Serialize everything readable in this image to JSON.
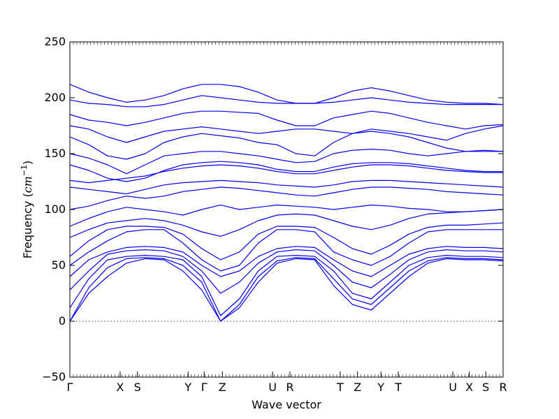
{
  "chart_data": {
    "type": "line",
    "title": "",
    "xlabel": "Wave vector",
    "ylabel_prefix": "Frequency (",
    "ylabel_unit": "cm",
    "ylabel_exp": "−1",
    "ylabel_suffix": ")",
    "ylim": [
      -50,
      250
    ],
    "yticks": [
      -50,
      0,
      50,
      100,
      150,
      200,
      250
    ],
    "xlim": [
      0,
      1
    ],
    "grid": false,
    "zero_line": true,
    "series_color": "#0000ee",
    "high_symmetry_points": [
      {
        "label": "Γ",
        "x": 0.0
      },
      {
        "label": "X",
        "x": 0.116
      },
      {
        "label": "S",
        "x": 0.156
      },
      {
        "label": "Y",
        "x": 0.273
      },
      {
        "label": "Γ",
        "x": 0.31
      },
      {
        "label": "Z",
        "x": 0.352
      },
      {
        "label": "U",
        "x": 0.468
      },
      {
        "label": "R",
        "x": 0.508
      },
      {
        "label": "T",
        "x": 0.624
      },
      {
        "label": "Z",
        "x": 0.664
      },
      {
        "label": "Y",
        "x": 0.718
      },
      {
        "label": "T",
        "x": 0.758
      },
      {
        "label": "U",
        "x": 0.884
      },
      {
        "label": "X",
        "x": 0.922
      },
      {
        "label": "S",
        "x": 0.96
      },
      {
        "label": "R",
        "x": 1.0
      }
    ],
    "series": [
      {
        "values": [
          0,
          25,
          40,
          52,
          56,
          55,
          45,
          28,
          0,
          12,
          35,
          52,
          56,
          55,
          32,
          15,
          10,
          25,
          40,
          52,
          56,
          55,
          55,
          54
        ]
      },
      {
        "values": [
          0,
          30,
          48,
          56,
          57,
          56,
          50,
          35,
          0,
          15,
          40,
          54,
          57,
          56,
          38,
          20,
          15,
          30,
          45,
          54,
          57,
          56,
          56,
          55
        ]
      },
      {
        "values": [
          12,
          38,
          55,
          58,
          59,
          58,
          55,
          40,
          5,
          20,
          45,
          58,
          59,
          58,
          45,
          25,
          20,
          35,
          50,
          57,
          59,
          58,
          58,
          57
        ]
      },
      {
        "values": [
          28,
          45,
          60,
          63,
          64,
          63,
          58,
          45,
          25,
          35,
          52,
          62,
          64,
          63,
          50,
          35,
          30,
          42,
          55,
          62,
          64,
          63,
          63,
          62
        ]
      },
      {
        "values": [
          40,
          55,
          62,
          66,
          67,
          66,
          62,
          50,
          40,
          45,
          58,
          65,
          67,
          66,
          55,
          45,
          40,
          50,
          60,
          65,
          67,
          66,
          66,
          65
        ]
      },
      {
        "values": [
          50,
          62,
          72,
          80,
          82,
          82,
          70,
          55,
          45,
          50,
          70,
          82,
          82,
          80,
          62,
          55,
          50,
          58,
          70,
          80,
          82,
          82,
          82,
          82
        ]
      },
      {
        "values": [
          58,
          72,
          82,
          85,
          85,
          84,
          78,
          65,
          55,
          62,
          78,
          85,
          85,
          84,
          75,
          65,
          60,
          68,
          78,
          84,
          86,
          86,
          87,
          88
        ]
      },
      {
        "values": [
          75,
          82,
          88,
          90,
          92,
          90,
          86,
          80,
          76,
          82,
          90,
          95,
          96,
          95,
          90,
          85,
          82,
          86,
          92,
          96,
          97,
          98,
          99,
          100
        ]
      },
      {
        "values": [
          85,
          92,
          98,
          102,
          100,
          98,
          95,
          100,
          104,
          100,
          102,
          104,
          103,
          102,
          100,
          102,
          104,
          103,
          101,
          100,
          98,
          98,
          99,
          100
        ]
      },
      {
        "values": [
          100,
          103,
          108,
          112,
          110,
          112,
          116,
          118,
          120,
          119,
          117,
          115,
          113,
          112,
          115,
          118,
          120,
          120,
          119,
          118,
          116,
          115,
          114,
          113
        ]
      },
      {
        "values": [
          120,
          118,
          116,
          114,
          118,
          122,
          124,
          125,
          126,
          125,
          124,
          122,
          121,
          120,
          122,
          125,
          126,
          126,
          125,
          124,
          123,
          122,
          121,
          120
        ]
      },
      {
        "values": [
          126,
          124,
          126,
          128,
          130,
          134,
          137,
          139,
          140,
          139,
          137,
          134,
          132,
          132,
          135,
          138,
          140,
          140,
          139,
          137,
          135,
          134,
          133,
          133
        ]
      },
      {
        "values": [
          140,
          135,
          128,
          125,
          128,
          135,
          140,
          142,
          143,
          142,
          140,
          136,
          134,
          134,
          138,
          141,
          142,
          142,
          141,
          139,
          137,
          135,
          134,
          134
        ]
      },
      {
        "values": [
          150,
          146,
          140,
          132,
          140,
          148,
          150,
          152,
          152,
          150,
          148,
          145,
          142,
          143,
          150,
          153,
          154,
          153,
          150,
          148,
          150,
          152,
          153,
          152
        ]
      },
      {
        "values": [
          165,
          158,
          148,
          145,
          150,
          160,
          165,
          168,
          166,
          164,
          160,
          158,
          150,
          148,
          160,
          168,
          170,
          168,
          165,
          160,
          155,
          152,
          152,
          152
        ]
      },
      {
        "values": [
          175,
          172,
          165,
          160,
          165,
          170,
          172,
          174,
          172,
          170,
          168,
          170,
          172,
          172,
          170,
          168,
          172,
          170,
          168,
          165,
          162,
          168,
          172,
          175
        ]
      },
      {
        "values": [
          185,
          180,
          178,
          175,
          178,
          182,
          186,
          188,
          188,
          187,
          186,
          180,
          175,
          175,
          182,
          185,
          188,
          186,
          182,
          178,
          175,
          172,
          175,
          176
        ]
      },
      {
        "values": [
          198,
          195,
          194,
          192,
          192,
          194,
          198,
          202,
          200,
          198,
          196,
          195,
          195,
          195,
          196,
          198,
          200,
          198,
          196,
          195,
          194,
          194,
          194,
          194
        ]
      },
      {
        "values": [
          212,
          205,
          200,
          196,
          198,
          202,
          208,
          212,
          212,
          210,
          205,
          198,
          195,
          195,
          200,
          206,
          209,
          206,
          202,
          198,
          196,
          195,
          195,
          194
        ]
      }
    ]
  }
}
